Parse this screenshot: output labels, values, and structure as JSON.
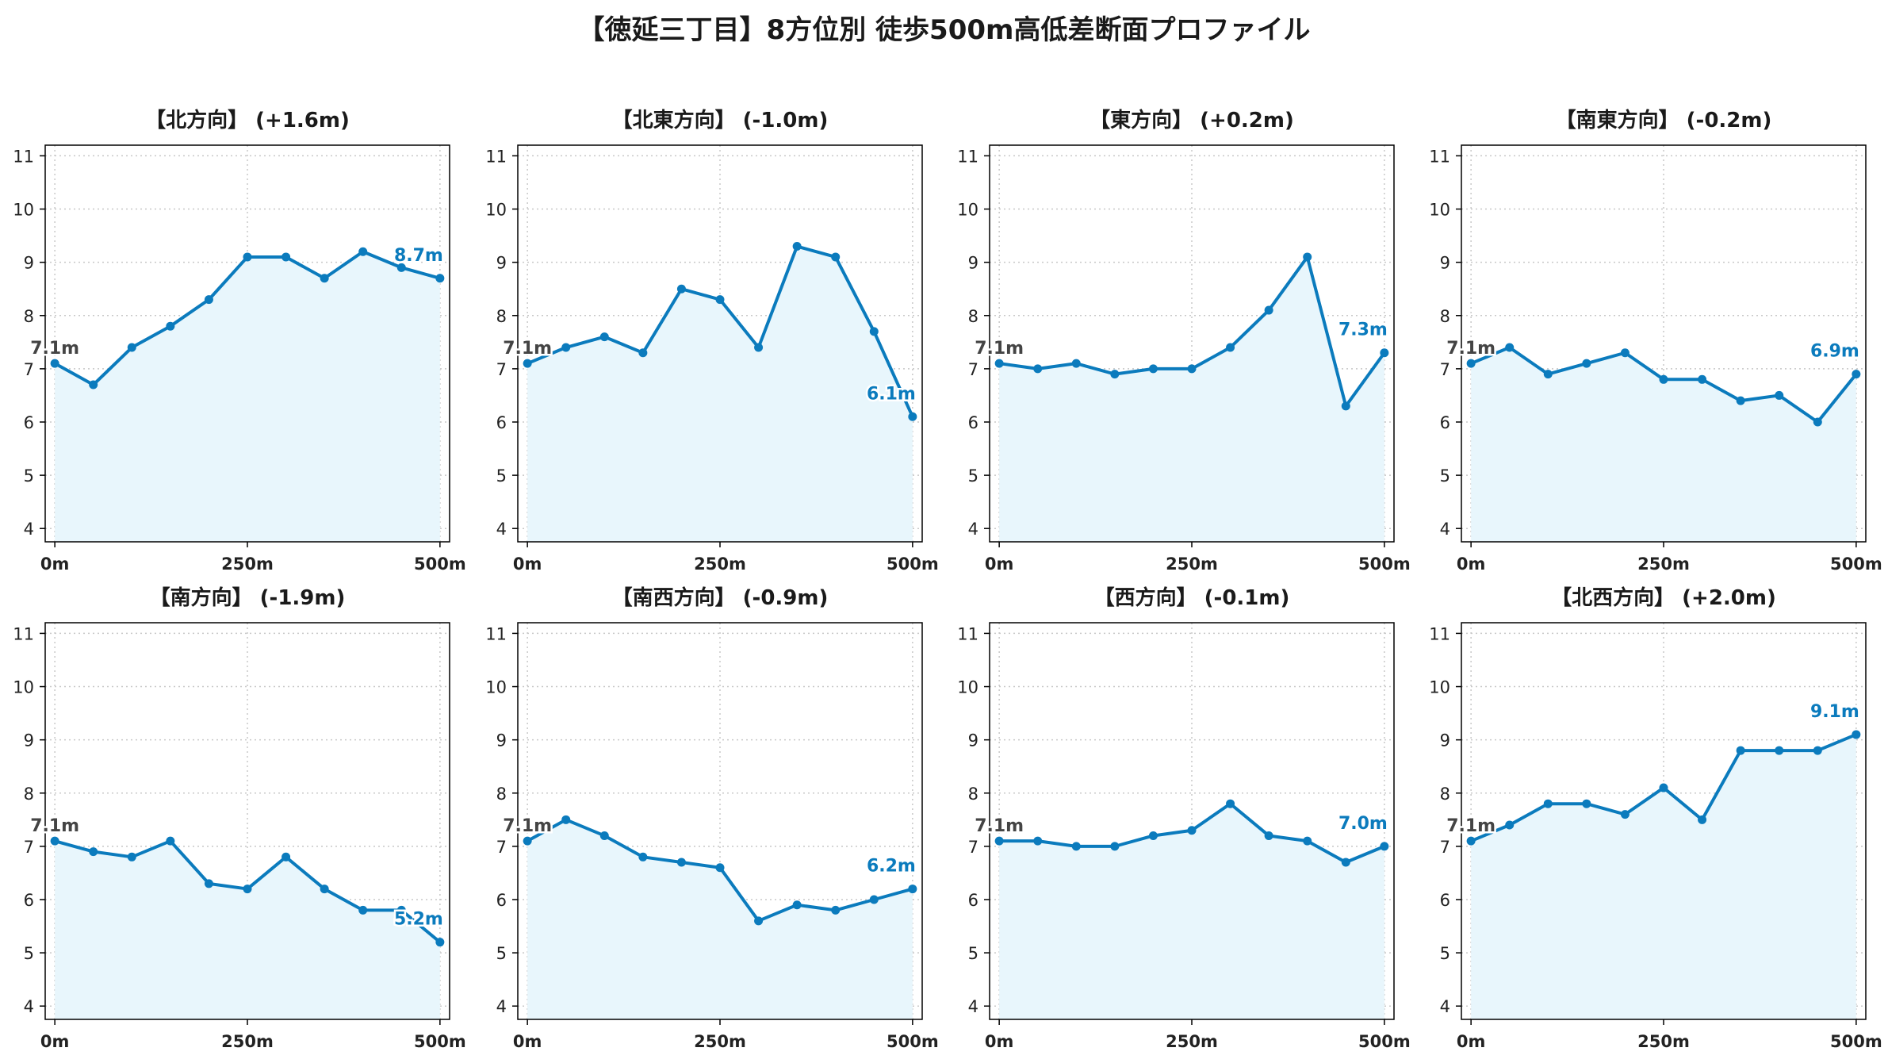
{
  "title": "【徳延三丁目】8方位別 徒歩500m高低差断面プロファイル",
  "colors": {
    "line": "#0b7bbd",
    "fill": "#e8f6fc",
    "start_label": "#444444",
    "end_label": "#0b7bbd",
    "grid": "#c8c8c8"
  },
  "chart_data": [
    {
      "type": "area",
      "title": "【北方向】 (+1.6m)",
      "x": [
        0,
        50,
        100,
        150,
        200,
        250,
        300,
        350,
        400,
        450,
        500
      ],
      "y": [
        7.1,
        6.7,
        7.4,
        7.8,
        8.3,
        9.1,
        9.1,
        8.7,
        9.2,
        8.9,
        8.7
      ],
      "xticks": [
        "0m",
        "250m",
        "500m"
      ],
      "yticks": [
        "4",
        "5",
        "6",
        "7",
        "8",
        "9",
        "10",
        "11"
      ],
      "ylim": [
        3.75,
        11.2
      ],
      "grid": true,
      "start_label": "7.1m",
      "end_label": "8.7m"
    },
    {
      "type": "area",
      "title": "【北東方向】 (-1.0m)",
      "x": [
        0,
        50,
        100,
        150,
        200,
        250,
        300,
        350,
        400,
        450,
        500
      ],
      "y": [
        7.1,
        7.4,
        7.6,
        7.3,
        8.5,
        8.3,
        7.4,
        9.3,
        9.1,
        7.7,
        6.1
      ],
      "xticks": [
        "0m",
        "250m",
        "500m"
      ],
      "yticks": [
        "4",
        "5",
        "6",
        "7",
        "8",
        "9",
        "10",
        "11"
      ],
      "ylim": [
        3.75,
        11.2
      ],
      "grid": true,
      "start_label": "7.1m",
      "end_label": "6.1m"
    },
    {
      "type": "area",
      "title": "【東方向】 (+0.2m)",
      "x": [
        0,
        50,
        100,
        150,
        200,
        250,
        300,
        350,
        400,
        450,
        500
      ],
      "y": [
        7.1,
        7.0,
        7.1,
        6.9,
        7.0,
        7.0,
        7.4,
        8.1,
        9.1,
        6.3,
        7.3
      ],
      "xticks": [
        "0m",
        "250m",
        "500m"
      ],
      "yticks": [
        "4",
        "5",
        "6",
        "7",
        "8",
        "9",
        "10",
        "11"
      ],
      "ylim": [
        3.75,
        11.2
      ],
      "grid": true,
      "start_label": "7.1m",
      "end_label": "7.3m"
    },
    {
      "type": "area",
      "title": "【南東方向】 (-0.2m)",
      "x": [
        0,
        50,
        100,
        150,
        200,
        250,
        300,
        350,
        400,
        450,
        500
      ],
      "y": [
        7.1,
        7.4,
        6.9,
        7.1,
        7.3,
        6.8,
        6.8,
        6.4,
        6.5,
        6.0,
        6.9
      ],
      "xticks": [
        "0m",
        "250m",
        "500m"
      ],
      "yticks": [
        "4",
        "5",
        "6",
        "7",
        "8",
        "9",
        "10",
        "11"
      ],
      "ylim": [
        3.75,
        11.2
      ],
      "grid": true,
      "start_label": "7.1m",
      "end_label": "6.9m"
    },
    {
      "type": "area",
      "title": "【南方向】 (-1.9m)",
      "x": [
        0,
        50,
        100,
        150,
        200,
        250,
        300,
        350,
        400,
        450,
        500
      ],
      "y": [
        7.1,
        6.9,
        6.8,
        7.1,
        6.3,
        6.2,
        6.8,
        6.2,
        5.8,
        5.8,
        5.2
      ],
      "xticks": [
        "0m",
        "250m",
        "500m"
      ],
      "yticks": [
        "4",
        "5",
        "6",
        "7",
        "8",
        "9",
        "10",
        "11"
      ],
      "ylim": [
        3.75,
        11.2
      ],
      "grid": true,
      "start_label": "7.1m",
      "end_label": "5.2m"
    },
    {
      "type": "area",
      "title": "【南西方向】 (-0.9m)",
      "x": [
        0,
        50,
        100,
        150,
        200,
        250,
        300,
        350,
        400,
        450,
        500
      ],
      "y": [
        7.1,
        7.5,
        7.2,
        6.8,
        6.7,
        6.6,
        5.6,
        5.9,
        5.8,
        6.0,
        6.2
      ],
      "xticks": [
        "0m",
        "250m",
        "500m"
      ],
      "yticks": [
        "4",
        "5",
        "6",
        "7",
        "8",
        "9",
        "10",
        "11"
      ],
      "ylim": [
        3.75,
        11.2
      ],
      "grid": true,
      "start_label": "7.1m",
      "end_label": "6.2m"
    },
    {
      "type": "area",
      "title": "【西方向】 (-0.1m)",
      "x": [
        0,
        50,
        100,
        150,
        200,
        250,
        300,
        350,
        400,
        450,
        500
      ],
      "y": [
        7.1,
        7.1,
        7.0,
        7.0,
        7.2,
        7.3,
        7.8,
        7.2,
        7.1,
        6.7,
        7.0
      ],
      "xticks": [
        "0m",
        "250m",
        "500m"
      ],
      "yticks": [
        "4",
        "5",
        "6",
        "7",
        "8",
        "9",
        "10",
        "11"
      ],
      "ylim": [
        3.75,
        11.2
      ],
      "grid": true,
      "start_label": "7.1m",
      "end_label": "7.0m"
    },
    {
      "type": "area",
      "title": "【北西方向】 (+2.0m)",
      "x": [
        0,
        50,
        100,
        150,
        200,
        250,
        300,
        350,
        400,
        450,
        500
      ],
      "y": [
        7.1,
        7.4,
        7.8,
        7.8,
        7.6,
        8.1,
        7.5,
        8.8,
        8.8,
        8.8,
        9.1
      ],
      "xticks": [
        "0m",
        "250m",
        "500m"
      ],
      "yticks": [
        "4",
        "5",
        "6",
        "7",
        "8",
        "9",
        "10",
        "11"
      ],
      "ylim": [
        3.75,
        11.2
      ],
      "grid": true,
      "start_label": "7.1m",
      "end_label": "9.1m"
    }
  ]
}
